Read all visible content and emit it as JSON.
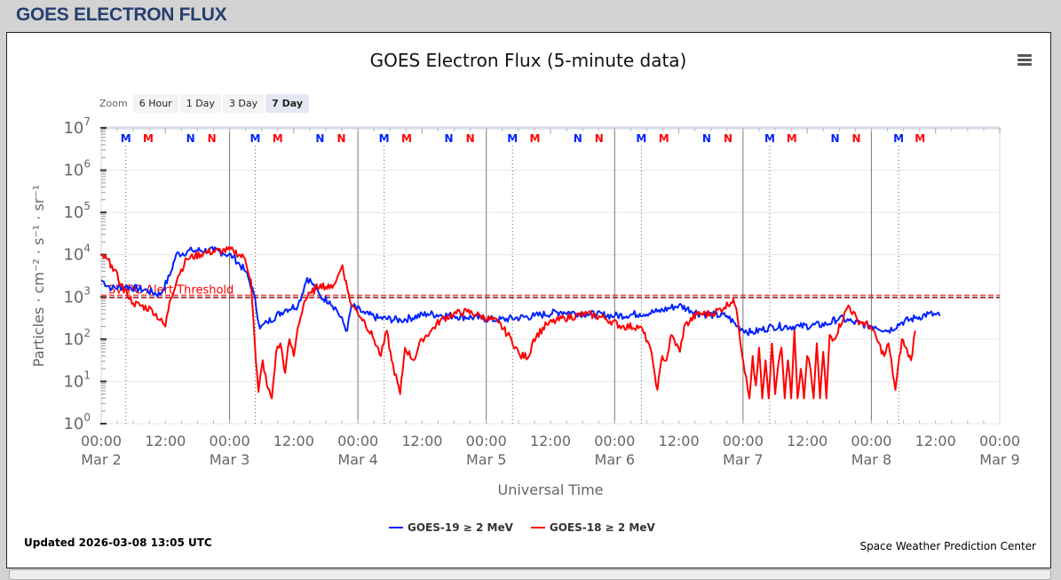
{
  "page_title": "GOES ELECTRON FLUX",
  "zoom": {
    "label": "Zoom",
    "buttons": [
      "6 Hour",
      "1 Day",
      "3 Day",
      "7 Day"
    ],
    "active": "7 Day"
  },
  "updated": "Updated 2026-03-08 13:05 UTC",
  "credit": "Space Weather Prediction Center",
  "colors": {
    "goes19": "#0022ff",
    "goes18": "#ff0000",
    "title_bar": "#263f70"
  },
  "chart_data": {
    "type": "line",
    "title": "GOES Electron Flux (5-minute data)",
    "xlabel": "Universal Time",
    "ylabel": "Particles · cm⁻² · s⁻¹ · sr⁻¹",
    "y_scale": "log",
    "ylim_log10": [
      0,
      7
    ],
    "y_ticks": [
      "10^0",
      "10^1",
      "10^2",
      "10^3",
      "10^4",
      "10^5",
      "10^6",
      "10^7"
    ],
    "xlim_hours": [
      0,
      168
    ],
    "x_origin": "Mar 2 00:00 UTC",
    "x_ticks": [
      {
        "h": 0,
        "time": "00:00",
        "date": "Mar 2"
      },
      {
        "h": 12,
        "time": "12:00",
        "date": ""
      },
      {
        "h": 24,
        "time": "00:00",
        "date": "Mar 3"
      },
      {
        "h": 36,
        "time": "12:00",
        "date": ""
      },
      {
        "h": 48,
        "time": "00:00",
        "date": "Mar 4"
      },
      {
        "h": 60,
        "time": "12:00",
        "date": ""
      },
      {
        "h": 72,
        "time": "00:00",
        "date": "Mar 5"
      },
      {
        "h": 84,
        "time": "12:00",
        "date": ""
      },
      {
        "h": 96,
        "time": "00:00",
        "date": "Mar 6"
      },
      {
        "h": 108,
        "time": "12:00",
        "date": ""
      },
      {
        "h": 120,
        "time": "00:00",
        "date": "Mar 7"
      },
      {
        "h": 132,
        "time": "12:00",
        "date": ""
      },
      {
        "h": 144,
        "time": "00:00",
        "date": "Mar 8"
      },
      {
        "h": 156,
        "time": "12:00",
        "date": ""
      },
      {
        "h": 168,
        "time": "00:00",
        "date": "Mar 9"
      }
    ],
    "threshold": {
      "label": "SWPC Alert Threshold",
      "value_log10": 3
    },
    "markers": [
      {
        "h": 4.6,
        "label": "M",
        "sat": "goes19"
      },
      {
        "h": 8.8,
        "label": "M",
        "sat": "goes18"
      },
      {
        "h": 16.7,
        "label": "N",
        "sat": "goes19"
      },
      {
        "h": 20.7,
        "label": "N",
        "sat": "goes18"
      },
      {
        "h": 28.8,
        "label": "M",
        "sat": "goes19"
      },
      {
        "h": 33.0,
        "label": "M",
        "sat": "goes18"
      },
      {
        "h": 40.9,
        "label": "N",
        "sat": "goes19"
      },
      {
        "h": 44.9,
        "label": "N",
        "sat": "goes18"
      },
      {
        "h": 52.9,
        "label": "M",
        "sat": "goes19"
      },
      {
        "h": 57.1,
        "label": "M",
        "sat": "goes18"
      },
      {
        "h": 65.0,
        "label": "N",
        "sat": "goes19"
      },
      {
        "h": 69.0,
        "label": "N",
        "sat": "goes18"
      },
      {
        "h": 76.9,
        "label": "M",
        "sat": "goes19"
      },
      {
        "h": 81.1,
        "label": "M",
        "sat": "goes18"
      },
      {
        "h": 89.1,
        "label": "N",
        "sat": "goes19"
      },
      {
        "h": 93.1,
        "label": "N",
        "sat": "goes18"
      },
      {
        "h": 101.0,
        "label": "M",
        "sat": "goes19"
      },
      {
        "h": 105.2,
        "label": "M",
        "sat": "goes18"
      },
      {
        "h": 113.2,
        "label": "N",
        "sat": "goes19"
      },
      {
        "h": 117.2,
        "label": "N",
        "sat": "goes18"
      },
      {
        "h": 125.0,
        "label": "M",
        "sat": "goes19"
      },
      {
        "h": 129.1,
        "label": "M",
        "sat": "goes18"
      },
      {
        "h": 137.2,
        "label": "N",
        "sat": "goes19"
      },
      {
        "h": 141.2,
        "label": "N",
        "sat": "goes18"
      },
      {
        "h": 149.1,
        "label": "M",
        "sat": "goes19"
      },
      {
        "h": 153.1,
        "label": "M",
        "sat": "goes18"
      }
    ],
    "series": [
      {
        "name": "GOES-19 ≥ 2 MeV",
        "key": "goes19",
        "h": [
          0,
          2,
          4.5,
          8.6,
          11,
          12.8,
          14,
          17,
          21,
          22.7,
          24.7,
          27,
          28.5,
          29.7,
          31,
          34.4,
          36.8,
          38.5,
          39.3,
          41,
          42.7,
          44,
          46,
          46.8,
          49.3,
          51.8,
          56,
          61,
          66,
          71,
          74,
          81,
          86,
          90.8,
          96,
          100.7,
          104,
          108,
          112,
          117,
          119,
          121.5,
          125.6,
          130.6,
          135.6,
          138,
          140.6,
          144.7,
          147.2,
          149.7,
          152.2,
          154.7,
          156.8
        ],
        "log10": [
          3.4,
          3.2,
          3.25,
          3.15,
          3.05,
          3.5,
          4.0,
          4.1,
          4.1,
          4.05,
          3.95,
          3.6,
          3.1,
          2.25,
          2.4,
          2.7,
          2.8,
          3.45,
          3.35,
          3.0,
          2.9,
          2.7,
          2.2,
          2.8,
          2.6,
          2.5,
          2.45,
          2.6,
          2.55,
          2.5,
          2.45,
          2.55,
          2.65,
          2.6,
          2.55,
          2.6,
          2.65,
          2.8,
          2.6,
          2.55,
          2.3,
          2.15,
          2.3,
          2.3,
          2.35,
          2.5,
          2.4,
          2.3,
          2.2,
          2.4,
          2.5,
          2.6,
          2.55
        ]
      },
      {
        "name": "GOES-18 ≥ 2 MeV",
        "key": "goes18",
        "h": [
          0,
          2,
          3.7,
          6,
          9.5,
          12,
          12.8,
          14.4,
          16,
          19.4,
          22.7,
          24.7,
          26.9,
          28,
          28.9,
          29.4,
          30.2,
          31,
          31.9,
          32.7,
          33.5,
          34.4,
          35.2,
          36,
          36.8,
          38,
          39.3,
          41,
          42.7,
          44,
          45.1,
          46,
          46.8,
          47.6,
          49.3,
          51,
          52.3,
          53.4,
          54.3,
          55.9,
          56.8,
          58.4,
          60,
          61.7,
          63.4,
          65.9,
          68.4,
          70.9,
          74.2,
          76.7,
          78.3,
          80,
          80.8,
          83.3,
          86.6,
          90.8,
          94.1,
          97.4,
          100.7,
          102.4,
          103.2,
          104,
          104.9,
          105.7,
          106.6,
          108.2,
          109,
          111.5,
          114,
          116.5,
          118.2,
          119,
          120,
          120.6,
          121.2,
          121.8,
          122.4,
          123,
          123.6,
          124.2,
          124.8,
          125.4,
          126,
          126.6,
          127.2,
          127.8,
          128.4,
          129,
          129.6,
          130.2,
          130.8,
          131.4,
          132,
          132.6,
          133.2,
          133.8,
          134.4,
          135,
          135.6,
          136.2,
          137,
          139.7,
          141.4,
          143.9,
          146.4,
          147.2,
          148.5,
          149.7,
          151.4,
          152.2
        ],
        "log10": [
          4.0,
          3.75,
          3.3,
          2.85,
          2.7,
          2.3,
          2.9,
          3.5,
          3.9,
          4.05,
          4.1,
          4.1,
          3.9,
          3.4,
          1.5,
          0.75,
          1.5,
          0.9,
          0.6,
          1.7,
          1.9,
          1.2,
          2.0,
          1.6,
          2.3,
          2.9,
          3.1,
          3.3,
          3.2,
          3.4,
          3.75,
          3.2,
          2.8,
          2.7,
          2.4,
          2.0,
          1.6,
          2.2,
          1.5,
          0.7,
          1.8,
          1.5,
          2.0,
          2.2,
          2.45,
          2.6,
          2.65,
          2.55,
          2.4,
          2.0,
          1.6,
          1.6,
          2.0,
          2.35,
          2.5,
          2.6,
          2.5,
          2.3,
          2.3,
          1.9,
          1.4,
          0.8,
          1.6,
          1.5,
          2.1,
          1.7,
          2.3,
          2.6,
          2.6,
          2.75,
          2.95,
          2.5,
          1.5,
          1.1,
          0.6,
          1.6,
          0.9,
          1.8,
          0.6,
          1.5,
          0.6,
          1.9,
          0.7,
          1.4,
          1.8,
          0.6,
          1.5,
          0.6,
          2.2,
          0.6,
          1.3,
          0.6,
          1.6,
          1.3,
          0.6,
          1.9,
          0.6,
          1.7,
          0.6,
          2.1,
          2.0,
          2.8,
          2.45,
          2.3,
          1.6,
          1.9,
          0.8,
          2.0,
          1.5,
          2.2
        ]
      }
    ]
  }
}
